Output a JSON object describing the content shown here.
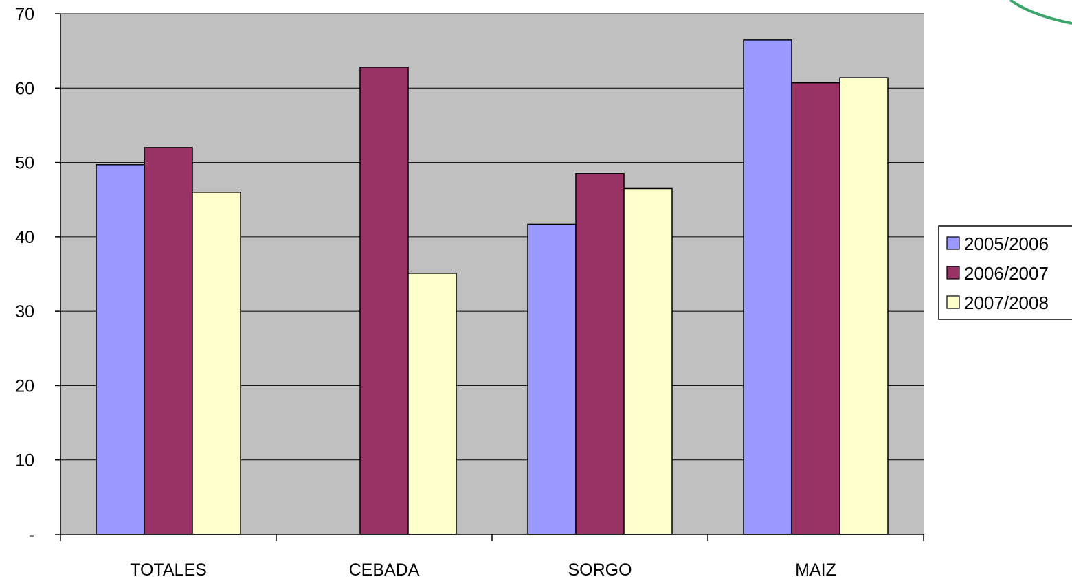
{
  "chart_data": {
    "type": "bar",
    "title": "",
    "xlabel": "",
    "ylabel": "",
    "categories": [
      "TOTALES",
      "CEBADA",
      "SORGO",
      "MAIZ"
    ],
    "series": [
      {
        "name": "2005/2006",
        "color": "#9999ff",
        "values": [
          49.7,
          null,
          41.7,
          66.5
        ]
      },
      {
        "name": "2006/2007",
        "color": "#993366",
        "values": [
          52.0,
          62.8,
          48.5,
          60.7
        ]
      },
      {
        "name": "2007/2008",
        "color": "#ffffcc",
        "values": [
          46.0,
          35.1,
          46.5,
          61.4
        ]
      }
    ],
    "ylim": [
      0,
      70
    ],
    "yticks": [
      0,
      10,
      20,
      30,
      40,
      50,
      60,
      70
    ],
    "ytick_labels": [
      "-",
      "10",
      "20",
      "30",
      "40",
      "50",
      "60",
      "70"
    ],
    "grid": true,
    "plot_background": "#c0c0c0",
    "legend_position": "right"
  }
}
